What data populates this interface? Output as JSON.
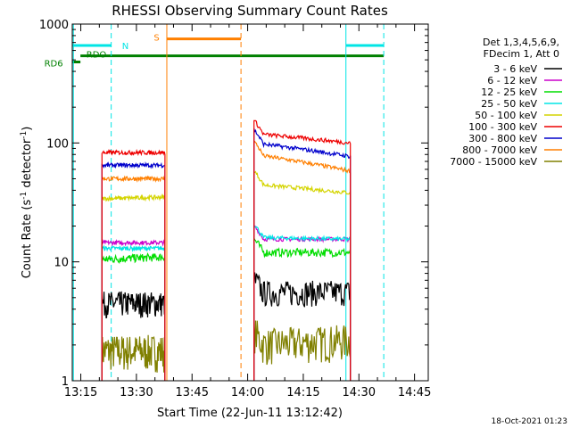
{
  "chart_data": {
    "type": "line",
    "title": "RHESSI Observing Summary Count Rates",
    "xlabel": "Start Time (22-Jun-11 13:12:42)",
    "ylabel_main": "Count Rate (s",
    "ylabel_sup1": "-1",
    "ylabel_mid": " detector",
    "ylabel_sup2": "-1",
    "ylabel_end": ")",
    "yscale": "log",
    "ylim": [
      1,
      1000
    ],
    "xlim_minutes": [
      0,
      96
    ],
    "x_unit": "minutes after 13:12:42",
    "x_ticks": [
      {
        "label": "13:15",
        "minute": 2.3
      },
      {
        "label": "13:30",
        "minute": 17.3
      },
      {
        "label": "13:45",
        "minute": 32.3
      },
      {
        "label": "14:00",
        "minute": 47.3
      },
      {
        "label": "14:15",
        "minute": 62.3
      },
      {
        "label": "14:30",
        "minute": 77.3
      },
      {
        "label": "14:45",
        "minute": 92.3
      }
    ],
    "y_ticks": [
      {
        "label": "1",
        "value": 1
      },
      {
        "label": "10",
        "value": 10
      },
      {
        "label": "100",
        "value": 100
      },
      {
        "label": "1000",
        "value": 1000
      }
    ],
    "legend_header": [
      "Det 1,3,4,5,6,9,",
      "FDecim 1, Att 0"
    ],
    "segments_minutes": [
      [
        8.0,
        25.0
      ],
      [
        49.0,
        75.0
      ]
    ],
    "series": [
      {
        "name": "3 - 6 keV",
        "color": "#000000",
        "seg1": [
          4.5,
          4.5
        ],
        "seg2": [
          5.5,
          5.6
        ]
      },
      {
        "name": "6 - 12 keV",
        "color": "#cc00cc",
        "seg1": [
          14.5,
          14.5
        ],
        "seg2": [
          15.5,
          15.5
        ]
      },
      {
        "name": "12 - 25 keV",
        "color": "#00dd00",
        "seg1": [
          10.5,
          11
        ],
        "seg2": [
          12,
          12
        ]
      },
      {
        "name": "25 - 50 keV",
        "color": "#00e5e5",
        "seg1": [
          13,
          13
        ],
        "seg2": [
          16,
          15.5
        ]
      },
      {
        "name": "50 - 100 keV",
        "color": "#d4d400",
        "seg1": [
          34,
          35
        ],
        "seg2": [
          45,
          38
        ]
      },
      {
        "name": "100 - 300 keV",
        "color": "#ee0000",
        "seg1": [
          83,
          83
        ],
        "seg2": [
          120,
          100
        ]
      },
      {
        "name": "300 - 800 keV",
        "color": "#0000cc",
        "seg1": [
          65,
          65
        ],
        "seg2": [
          100,
          77
        ]
      },
      {
        "name": "800 - 7000 keV",
        "color": "#ff7f00",
        "seg1": [
          50,
          50
        ],
        "seg2": [
          80,
          58
        ]
      },
      {
        "name": "7000 - 15000 keV",
        "color": "#808000",
        "seg1": [
          1.8,
          1.8
        ],
        "seg2": [
          2.0,
          2.2
        ]
      }
    ],
    "flags": [
      {
        "label": "N",
        "color": "#00e5e5",
        "level": 660,
        "ranges": [
          [
            0,
            10.5
          ],
          [
            73.8,
            84
          ]
        ]
      },
      {
        "label": "S",
        "color": "#ff7f00",
        "level": 750,
        "ranges": [
          [
            25.5,
            45.5
          ]
        ]
      },
      {
        "label": "RDO",
        "color": "#008000",
        "level": 540,
        "ranges": [
          [
            2.2,
            84
          ]
        ]
      },
      {
        "label": "RD6",
        "color": "#008000",
        "level": 480,
        "ranges": [
          [
            0,
            2.2
          ]
        ]
      }
    ],
    "vlines": [
      {
        "minute": 0.3,
        "color": "#00e5e5",
        "style": "solid"
      },
      {
        "minute": 10.5,
        "color": "#00e5e5",
        "style": "dash"
      },
      {
        "minute": 25.5,
        "color": "#ff7f00",
        "style": "solid"
      },
      {
        "minute": 45.5,
        "color": "#ff7f00",
        "style": "dash"
      },
      {
        "minute": 73.8,
        "color": "#00e5e5",
        "style": "solid"
      },
      {
        "minute": 84.0,
        "color": "#00e5e5",
        "style": "dash"
      }
    ],
    "grid": false,
    "legend_position": "right"
  },
  "footer": {
    "timestamp": "18-Oct-2021 01:23"
  }
}
